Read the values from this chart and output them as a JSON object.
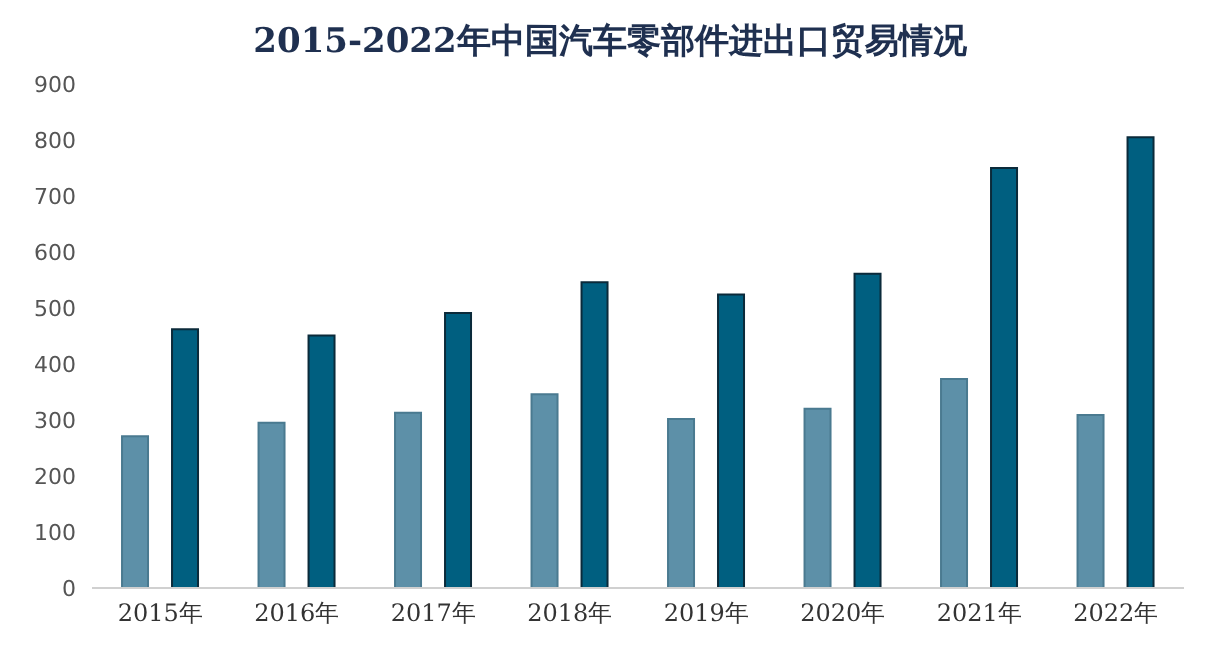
{
  "chart_data": {
    "type": "bar",
    "title": "2015-2022年中国汽车零部件进出口贸易情况",
    "categories": [
      "2015年",
      "2016年",
      "2017年",
      "2018年",
      "2019年",
      "2020年",
      "2021年",
      "2022年"
    ],
    "series": [
      {
        "color": "#5d90a8",
        "values": [
          271,
          295,
          313,
          346,
          302,
          320,
          373,
          309
        ]
      },
      {
        "color": "#005f80",
        "values": [
          462,
          451,
          491,
          546,
          524,
          561,
          750,
          805
        ]
      }
    ],
    "ylim": [
      0,
      900
    ],
    "yticks": [
      0,
      100,
      200,
      300,
      400,
      500,
      600,
      700,
      800,
      900
    ],
    "grid": false,
    "legend": false
  }
}
